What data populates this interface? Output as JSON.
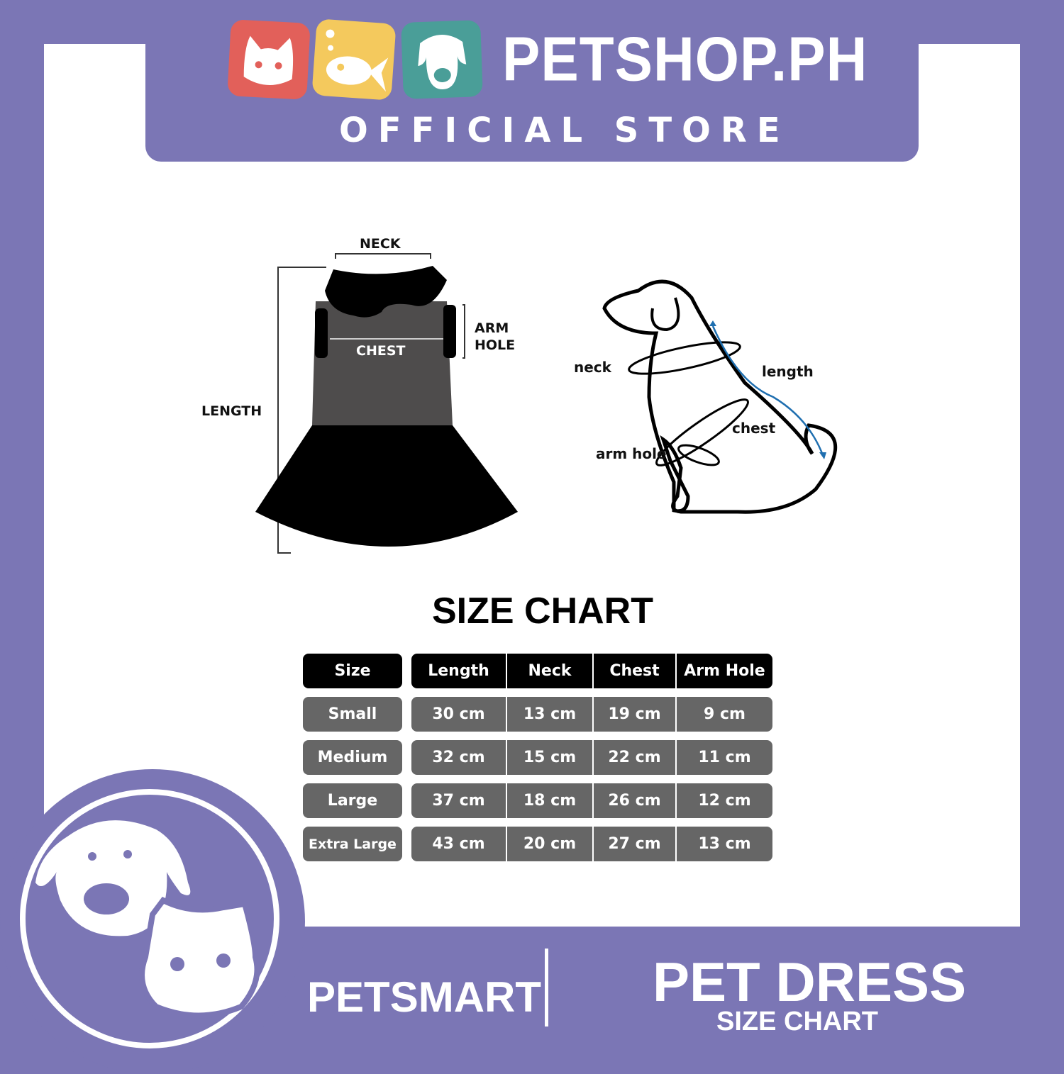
{
  "header": {
    "brand": "PETSHOP.PH",
    "subtitle": "OFFICIAL STORE",
    "tile_colors": [
      "#e2605a",
      "#f4c95d",
      "#4a9e98"
    ]
  },
  "dress_diagram": {
    "neck": "NECK",
    "chest": "CHEST",
    "arm_hole_1": "ARM",
    "arm_hole_2": "HOLE",
    "length": "LENGTH"
  },
  "dog_diagram": {
    "neck": "neck",
    "length": "length",
    "chest": "chest",
    "arm_hole": "arm hole"
  },
  "size_chart": {
    "title": "SIZE CHART",
    "headers": [
      "Size",
      "Length",
      "Neck",
      "Chest",
      "Arm Hole"
    ],
    "rows": [
      [
        "Small",
        "30 cm",
        "13 cm",
        "19 cm",
        "9 cm"
      ],
      [
        "Medium",
        "32 cm",
        "15 cm",
        "22 cm",
        "11 cm"
      ],
      [
        "Large",
        "37 cm",
        "18 cm",
        "26 cm",
        "12 cm"
      ],
      [
        "Extra Large",
        "43 cm",
        "20 cm",
        "27 cm",
        "13 cm"
      ]
    ]
  },
  "footer": {
    "brand": "PETSMART",
    "product": "PET DRESS",
    "product_sub": "SIZE CHART"
  },
  "colors": {
    "purple": "#7b76b5",
    "header_cell": "#000000",
    "body_cell": "#666666",
    "accent_arrow": "#1f6fb0"
  }
}
